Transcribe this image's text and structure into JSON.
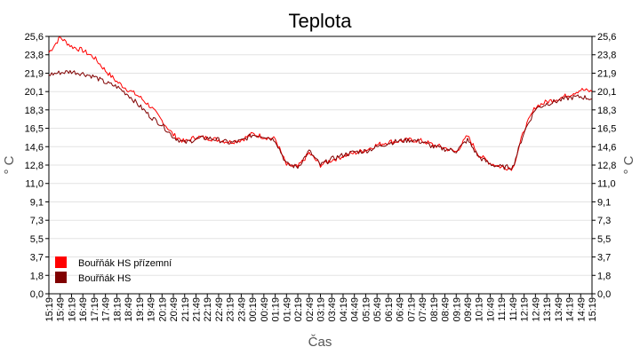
{
  "chart_data": {
    "type": "line",
    "title": "Teplota",
    "xlabel": "Čas",
    "ylabel": "° C",
    "ylabel_right": "° C",
    "ylim": [
      0,
      25.6
    ],
    "yticks": [
      "0,0",
      "1,8",
      "3,7",
      "5,5",
      "7,3",
      "9,1",
      "11,0",
      "12,8",
      "14,6",
      "16,5",
      "18,3",
      "20,1",
      "21,9",
      "23,8",
      "25,6"
    ],
    "ytick_values": [
      0,
      1.83,
      3.66,
      5.49,
      7.31,
      9.14,
      10.97,
      12.8,
      14.63,
      16.46,
      18.29,
      20.11,
      21.94,
      23.77,
      25.6
    ],
    "xticks": [
      "15:19",
      "15:49",
      "16:19",
      "16:49",
      "17:19",
      "17:49",
      "18:19",
      "18:49",
      "19:19",
      "19:49",
      "20:19",
      "20:49",
      "21:19",
      "21:49",
      "22:19",
      "22:49",
      "23:19",
      "23:49",
      "00:19",
      "00:49",
      "01:19",
      "01:49",
      "02:19",
      "02:49",
      "03:19",
      "03:49",
      "04:19",
      "04:49",
      "05:19",
      "05:49",
      "06:19",
      "06:49",
      "07:19",
      "07:49",
      "08:19",
      "08:49",
      "09:19",
      "09:49",
      "10:19",
      "10:49",
      "11:19",
      "11:49",
      "12:19",
      "12:49",
      "13:19",
      "13:49",
      "14:19",
      "14:49",
      "15:19"
    ],
    "grid": true,
    "legend_position": "bottom-left",
    "series": [
      {
        "name": "Bouřňák HS přízemní",
        "color": "#ff0000",
        "values": [
          24.0,
          25.5,
          24.6,
          24.2,
          23.5,
          22.2,
          21.1,
          20.3,
          19.6,
          18.6,
          17.2,
          15.8,
          15.1,
          15.6,
          15.5,
          15.3,
          15.1,
          15.3,
          15.9,
          15.6,
          15.4,
          12.8,
          12.6,
          14.0,
          12.8,
          13.3,
          13.7,
          14.0,
          14.3,
          14.8,
          15.1,
          15.2,
          15.3,
          15.2,
          14.8,
          14.5,
          14.1,
          15.7,
          13.8,
          13.0,
          12.6,
          12.5,
          16.3,
          18.6,
          19.1,
          19.4,
          19.8,
          20.3,
          20.1
        ]
      },
      {
        "name": "Bouřňák HS",
        "color": "#800000",
        "values": [
          21.8,
          22.0,
          22.1,
          21.9,
          21.6,
          21.0,
          20.6,
          19.8,
          18.7,
          17.6,
          16.8,
          15.6,
          15.0,
          15.4,
          15.5,
          15.3,
          15.0,
          15.2,
          15.8,
          15.7,
          15.3,
          12.9,
          12.6,
          14.2,
          12.8,
          13.4,
          13.8,
          14.1,
          14.2,
          14.6,
          15.0,
          15.2,
          15.3,
          15.1,
          14.6,
          14.4,
          14.2,
          15.3,
          13.6,
          12.9,
          12.6,
          12.6,
          16.1,
          18.4,
          18.9,
          19.2,
          19.5,
          19.6,
          19.4
        ]
      }
    ]
  }
}
